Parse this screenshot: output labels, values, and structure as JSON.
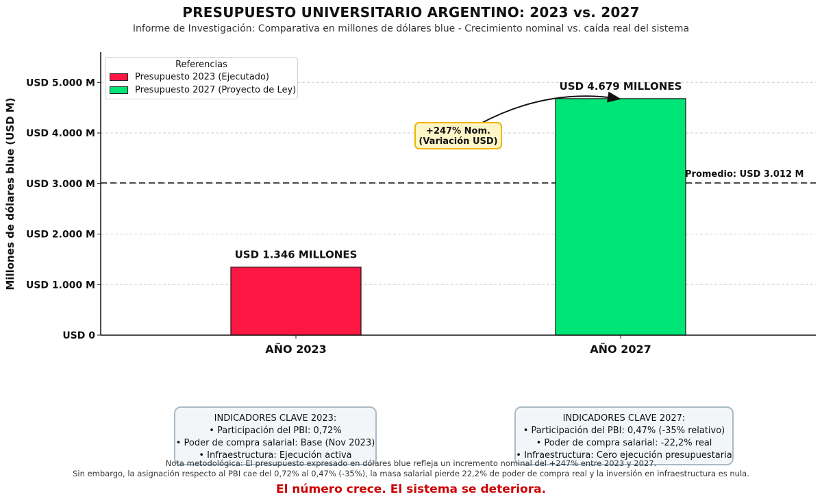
{
  "header": {
    "title": "PRESUPUESTO UNIVERSITARIO ARGENTINO: 2023 vs. 2027",
    "subtitle": "Informe de Investigación: Comparativa en millones de dólares blue - Crecimiento nominal vs. caída real del sistema"
  },
  "legend": {
    "title": "Referencias",
    "items": [
      {
        "label": "Presupuesto 2023 (Ejecutado)",
        "color": "#ff1744"
      },
      {
        "label": "Presupuesto 2027 (Proyecto de Ley)",
        "color": "#00e676"
      }
    ]
  },
  "chart_data": {
    "type": "bar",
    "categories": [
      "AÑO 2023",
      "AÑO 2027"
    ],
    "values": [
      1346,
      4679
    ],
    "colors": [
      "#ff1744",
      "#00e676"
    ],
    "bar_labels": [
      "USD 1.346 MILLONES",
      "USD 4.679 MILLONES"
    ],
    "ylabel": "Millones de dólares blue (USD M)",
    "ylim": [
      0,
      5600
    ],
    "yticks": [
      0,
      1000,
      2000,
      3000,
      4000,
      5000
    ],
    "ytick_labels": [
      "USD 0",
      "USD 1.000 M",
      "USD 2.000 M",
      "USD 3.000 M",
      "USD 4.000 M",
      "USD 5.000 M"
    ],
    "grid": "horizontal dashed",
    "average": {
      "value": 3012,
      "label": "Promedio: USD 3.012 M"
    },
    "annotation": {
      "line1": "+247% Nom.",
      "line2": "(Variación USD)"
    },
    "legend_position": "top-left"
  },
  "indicators": [
    {
      "title": "INDICADORES CLAVE 2023:",
      "lines": [
        "• Participación del PBI: 0,72%",
        "• Poder de compra salarial: Base (Nov 2023)",
        "• Infraestructura: Ejecución activa"
      ]
    },
    {
      "title": "INDICADORES CLAVE 2027:",
      "lines": [
        "• Participación del PBI: 0,47% (-35% relativo)",
        "• Poder de compra salarial: -22,2% real",
        "• Infraestructura: Cero ejecución presupuestaria"
      ]
    }
  ],
  "footer": {
    "note_line1": "Nota metodológica: El presupuesto expresado en dólares blue refleja un incremento nominal del +247% entre 2023 y 2027.",
    "note_line2": "Sin embargo, la asignación respecto al PBI cae del 0,72% al 0,47% (-35%), la masa salarial pierde 22,2% de poder de compra real y la inversión en infraestructura es nula.",
    "conclusion": "El número crece. El sistema se deteriora."
  }
}
